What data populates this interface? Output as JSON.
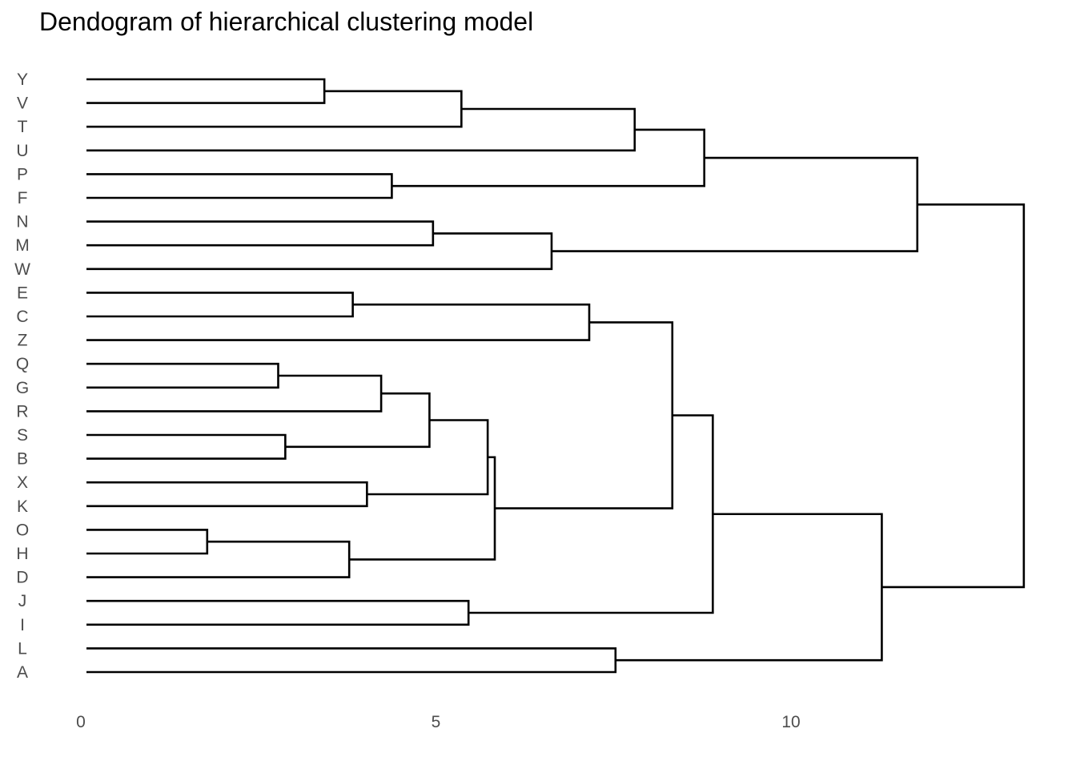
{
  "chart_data": {
    "type": "dendrogram",
    "title": "Dendogram of hierarchical clustering model",
    "xlabel": "",
    "ylabel": "",
    "orientation": "horizontal",
    "grid": false,
    "xlim": [
      0,
      13.5
    ],
    "x_ticks": [
      0,
      5,
      10
    ],
    "leaves": [
      "Y",
      "V",
      "T",
      "U",
      "P",
      "F",
      "N",
      "M",
      "W",
      "E",
      "C",
      "Z",
      "Q",
      "G",
      "R",
      "S",
      "B",
      "X",
      "K",
      "O",
      "H",
      "D",
      "J",
      "I",
      "L",
      "A"
    ],
    "merges": [
      {
        "id": "m1",
        "children": [
          "O",
          "H"
        ],
        "height": 1.7
      },
      {
        "id": "m2",
        "children": [
          "Q",
          "G"
        ],
        "height": 2.7
      },
      {
        "id": "m3",
        "children": [
          "S",
          "B"
        ],
        "height": 2.8
      },
      {
        "id": "m4",
        "children": [
          "Y",
          "V"
        ],
        "height": 3.35
      },
      {
        "id": "m5",
        "children": [
          "m1",
          "D"
        ],
        "height": 3.7
      },
      {
        "id": "m6",
        "children": [
          "E",
          "C"
        ],
        "height": 3.75
      },
      {
        "id": "m7",
        "children": [
          "X",
          "K"
        ],
        "height": 3.95
      },
      {
        "id": "m8",
        "children": [
          "m2",
          "R"
        ],
        "height": 4.15
      },
      {
        "id": "m9",
        "children": [
          "P",
          "F"
        ],
        "height": 4.3
      },
      {
        "id": "m10",
        "children": [
          "m8",
          "m3"
        ],
        "height": 4.83
      },
      {
        "id": "m11",
        "children": [
          "N",
          "M"
        ],
        "height": 4.88
      },
      {
        "id": "m12",
        "children": [
          "m4",
          "T"
        ],
        "height": 5.28
      },
      {
        "id": "m13",
        "children": [
          "J",
          "I"
        ],
        "height": 5.38
      },
      {
        "id": "m14",
        "children": [
          "m10",
          "m7"
        ],
        "height": 5.65
      },
      {
        "id": "m15",
        "children": [
          "m14",
          "m5"
        ],
        "height": 5.75
      },
      {
        "id": "m16",
        "children": [
          "m11",
          "W"
        ],
        "height": 6.55
      },
      {
        "id": "m17",
        "children": [
          "m6",
          "Z"
        ],
        "height": 7.08
      },
      {
        "id": "m18",
        "children": [
          "L",
          "A"
        ],
        "height": 7.45
      },
      {
        "id": "m19",
        "children": [
          "m12",
          "U"
        ],
        "height": 7.72
      },
      {
        "id": "m20",
        "children": [
          "m17",
          "m15"
        ],
        "height": 8.25
      },
      {
        "id": "m21",
        "children": [
          "m19",
          "m9"
        ],
        "height": 8.7
      },
      {
        "id": "m22",
        "children": [
          "m20",
          "m13"
        ],
        "height": 8.82
      },
      {
        "id": "m23",
        "children": [
          "m22",
          "m18"
        ],
        "height": 11.2
      },
      {
        "id": "m24",
        "children": [
          "m21",
          "m16"
        ],
        "height": 11.7
      },
      {
        "id": "m25",
        "children": [
          "m24",
          "m23"
        ],
        "height": 13.2
      }
    ]
  }
}
